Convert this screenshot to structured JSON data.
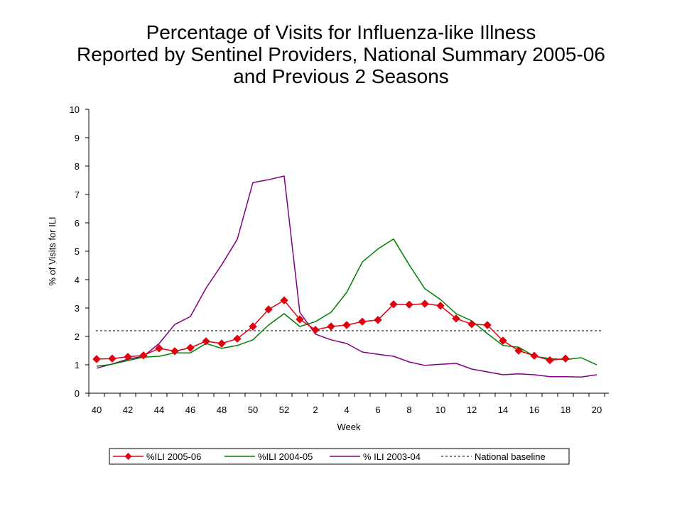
{
  "chart_data": {
    "type": "line",
    "title_lines": [
      "Percentage of Visits for Influenza-like Illness",
      "Reported by Sentinel Providers, National Summary 2005-06",
      "and Previous 2 Seasons"
    ],
    "xlabel": "Week",
    "ylabel": "% of Visits for ILI",
    "ylim": [
      0,
      10
    ],
    "y_ticks": [
      0,
      1,
      2,
      3,
      4,
      5,
      6,
      7,
      8,
      9,
      10
    ],
    "weeks": [
      "40",
      "41",
      "42",
      "43",
      "44",
      "45",
      "46",
      "47",
      "48",
      "49",
      "50",
      "51",
      "52",
      "1",
      "2",
      "3",
      "4",
      "5",
      "6",
      "7",
      "8",
      "9",
      "10",
      "11",
      "12",
      "13",
      "14",
      "15",
      "16",
      "17",
      "18",
      "19",
      "20"
    ],
    "x_tick_labels": [
      "40",
      "42",
      "44",
      "46",
      "48",
      "50",
      "52",
      "2",
      "4",
      "6",
      "8",
      "10",
      "12",
      "14",
      "16",
      "18",
      "20"
    ],
    "series": [
      {
        "name": "%ILI 2005-06",
        "color": "#e0000e",
        "marker": "diamond",
        "values": [
          1.2,
          1.22,
          1.28,
          1.33,
          1.58,
          1.48,
          1.6,
          1.83,
          1.75,
          1.92,
          2.35,
          2.95,
          3.27,
          2.6,
          2.23,
          2.35,
          2.4,
          2.52,
          2.58,
          3.13,
          3.12,
          3.15,
          3.08,
          2.63,
          2.43,
          2.4,
          1.85,
          1.5,
          1.32,
          1.16,
          1.22
        ]
      },
      {
        "name": "%ILI 2004-05",
        "color": "#008000",
        "marker": "none",
        "values": [
          0.95,
          1.02,
          1.15,
          1.27,
          1.3,
          1.42,
          1.42,
          1.75,
          1.58,
          1.68,
          1.88,
          2.4,
          2.8,
          2.35,
          2.52,
          2.85,
          3.55,
          4.62,
          5.08,
          5.43,
          4.52,
          3.68,
          3.3,
          2.8,
          2.55,
          2.1,
          1.68,
          1.62,
          1.3,
          1.22,
          1.18,
          1.25,
          1.0
        ]
      },
      {
        "name": "% ILI 2003-04",
        "color": "#800080",
        "marker": "none",
        "values": [
          0.88,
          1.03,
          1.2,
          1.3,
          1.75,
          2.42,
          2.7,
          3.7,
          4.52,
          5.42,
          7.42,
          7.52,
          7.65,
          2.85,
          2.08,
          1.88,
          1.75,
          1.45,
          1.37,
          1.3,
          1.1,
          0.98,
          1.02,
          1.05,
          0.85,
          0.75,
          0.65,
          0.68,
          0.65,
          0.58,
          0.58,
          0.57,
          0.65
        ]
      }
    ],
    "baseline": {
      "name": "National baseline",
      "value": 2.2,
      "color": "#000000",
      "style": "dashed"
    },
    "legend_position": "bottom-center",
    "grid": false
  }
}
